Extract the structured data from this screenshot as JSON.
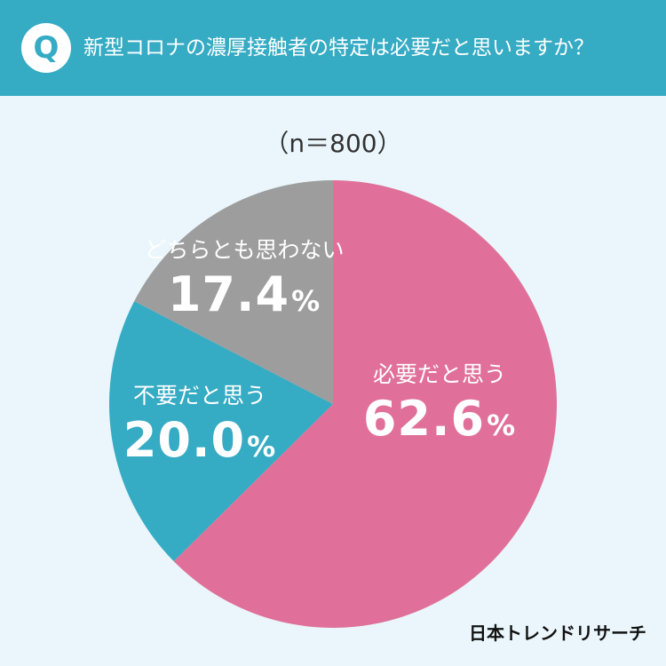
{
  "header": {
    "badge": "Q",
    "question": "新型コロナの濃厚接触者の特定は必要だと思いますか？"
  },
  "sample_label": "（n＝800）",
  "chart_data": {
    "type": "pie",
    "start": "top-clockwise",
    "slices": [
      {
        "label": "必要だと思う",
        "value": 62.6,
        "value_text": "62.6",
        "color": "#e0709a"
      },
      {
        "label": "不要だと思う",
        "value": 20.0,
        "value_text": "20.0",
        "color": "#35abc4"
      },
      {
        "label": "どちらとも思わない",
        "value": 17.4,
        "value_text": "17.4",
        "color": "#9d9d9d"
      }
    ],
    "unit": "%"
  },
  "brand": "日本トレンドリサーチ"
}
